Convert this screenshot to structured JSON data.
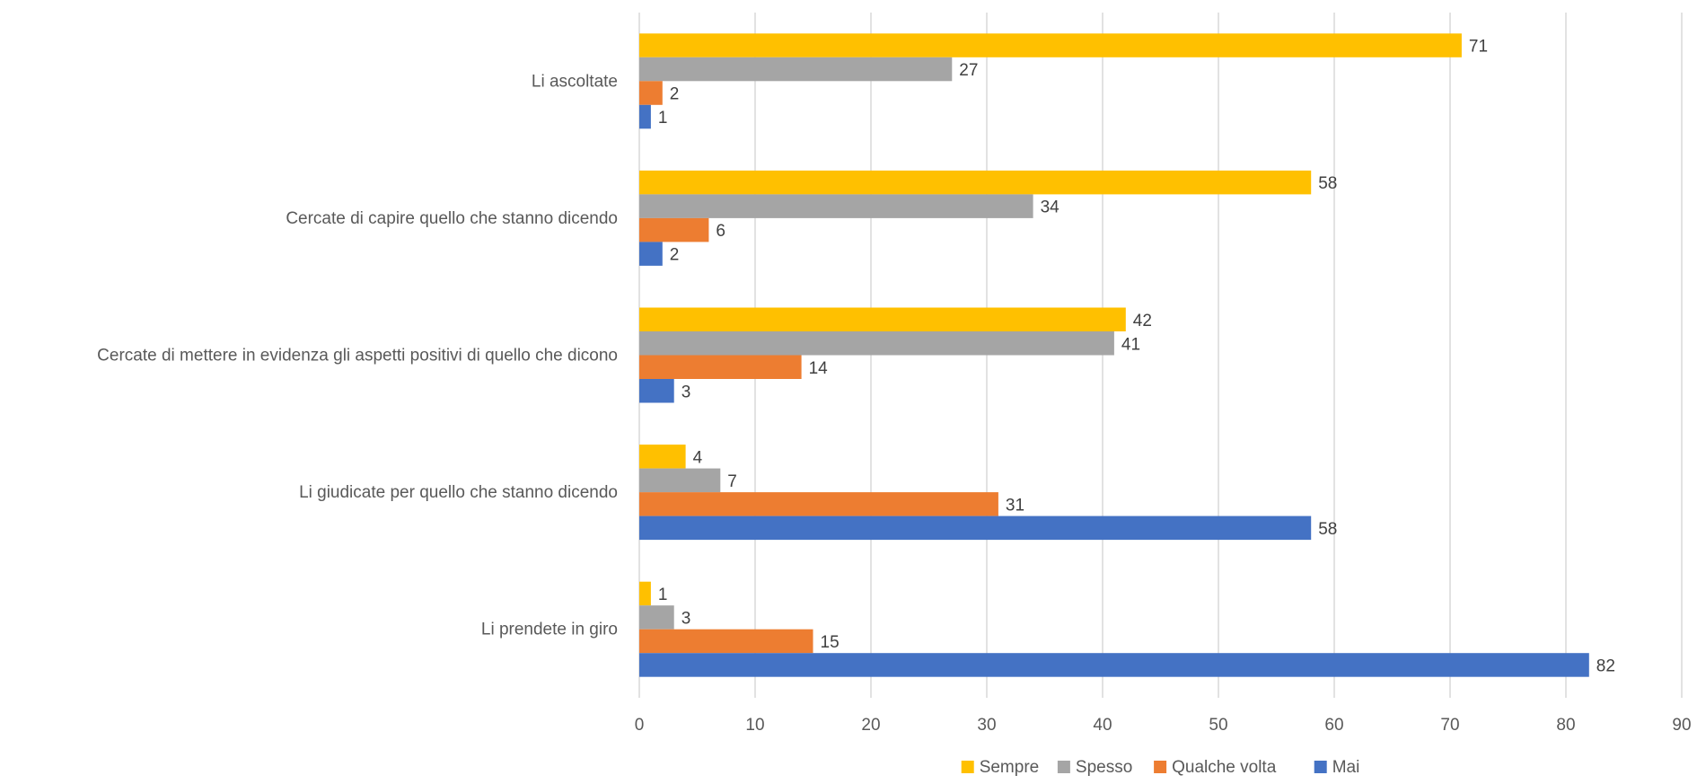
{
  "chart_data": {
    "type": "bar",
    "orientation": "horizontal",
    "categories": [
      "Li ascoltate",
      "Cercate di capire quello che stanno dicendo",
      "Cercate di mettere in evidenza gli aspetti positivi di quello che dicono",
      "Li giudicate per quello che stanno dicendo",
      "Li prendete in giro"
    ],
    "series": [
      {
        "name": "Sempre",
        "color": "#FFC000",
        "values": [
          71,
          58,
          42,
          4,
          1
        ]
      },
      {
        "name": "Spesso",
        "color": "#A5A5A5",
        "values": [
          27,
          34,
          41,
          7,
          3
        ]
      },
      {
        "name": "Qualche volta",
        "color": "#ED7D31",
        "values": [
          2,
          6,
          14,
          31,
          15
        ]
      },
      {
        "name": "Mai",
        "color": "#4472C4",
        "values": [
          1,
          2,
          3,
          58,
          82
        ]
      }
    ],
    "xlim": [
      0,
      90
    ],
    "x_ticks": [
      0,
      10,
      20,
      30,
      40,
      50,
      60,
      70,
      80,
      90
    ],
    "grid": "vertical",
    "legend": "bottom"
  }
}
